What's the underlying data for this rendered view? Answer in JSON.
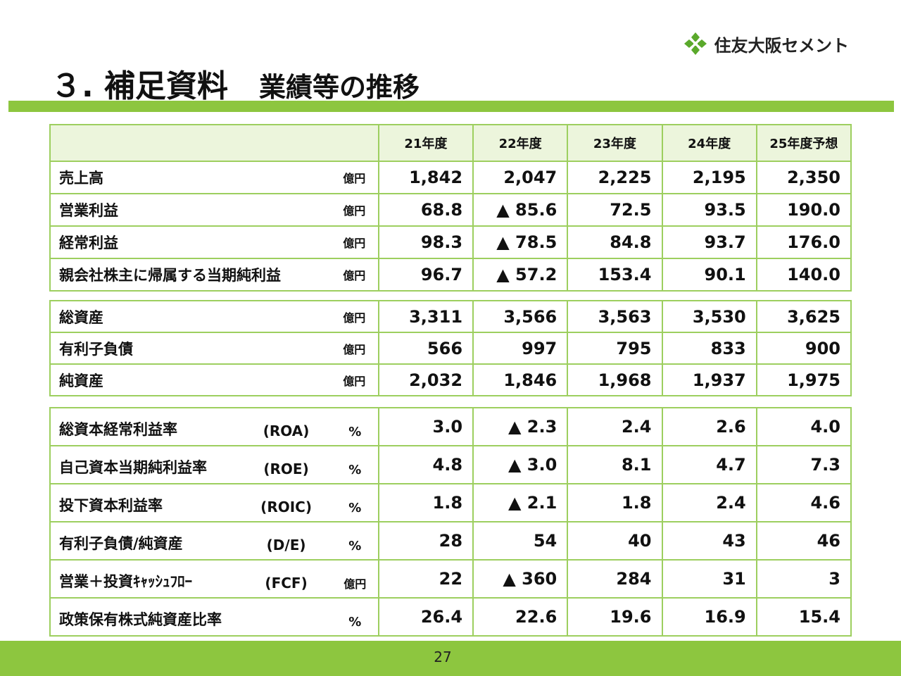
{
  "logo": {
    "text": "住友大阪セメント",
    "icon": "diamond-leaf-logo-icon",
    "color": "#5aa92b"
  },
  "title": {
    "main": "３. 補足資料",
    "sub": "業績等の推移"
  },
  "colors": {
    "accent_bar": "#8dc63f",
    "table_border": "#9dcf5f",
    "header_bg": "#ecf5dc"
  },
  "table": {
    "years": [
      "21年度",
      "22年度",
      "23年度",
      "24年度",
      "25年度予想"
    ],
    "group1": [
      {
        "label": "売上高",
        "unit": "億円",
        "values": [
          "1,842",
          "2,047",
          "2,225",
          "2,195",
          "2,350"
        ]
      },
      {
        "label": "営業利益",
        "unit": "億円",
        "values": [
          "68.8",
          "▲ 85.6",
          "72.5",
          "93.5",
          "190.0"
        ]
      },
      {
        "label": "経常利益",
        "unit": "億円",
        "values": [
          "98.3",
          "▲ 78.5",
          "84.8",
          "93.7",
          "176.0"
        ]
      },
      {
        "label": "親会社株主に帰属する当期純利益",
        "unit": "億円",
        "values": [
          "96.7",
          "▲ 57.2",
          "153.4",
          "90.1",
          "140.0"
        ]
      }
    ],
    "group2": [
      {
        "label": "総資産",
        "unit": "億円",
        "values": [
          "3,311",
          "3,566",
          "3,563",
          "3,530",
          "3,625"
        ]
      },
      {
        "label": "有利子負債",
        "unit": "億円",
        "values": [
          "566",
          "997",
          "795",
          "833",
          "900"
        ]
      },
      {
        "label": "純資産",
        "unit": "億円",
        "values": [
          "2,032",
          "1,846",
          "1,968",
          "1,937",
          "1,975"
        ]
      }
    ],
    "group3": [
      {
        "label": "総資本経常利益率",
        "abbr": "(ROA)",
        "unit": "%",
        "values": [
          "3.0",
          "▲ 2.3",
          "2.4",
          "2.6",
          "4.0"
        ]
      },
      {
        "label": "自己資本当期純利益率",
        "abbr": "(ROE)",
        "unit": "%",
        "values": [
          "4.8",
          "▲ 3.0",
          "8.1",
          "4.7",
          "7.3"
        ]
      },
      {
        "label": "投下資本利益率",
        "abbr": "(ROIC)",
        "unit": "%",
        "values": [
          "1.8",
          "▲ 2.1",
          "1.8",
          "2.4",
          "4.6"
        ]
      },
      {
        "label": "有利子負債/純資産",
        "abbr": "(D/E)",
        "unit": "%",
        "values": [
          "28",
          "54",
          "40",
          "43",
          "46"
        ]
      },
      {
        "label": "営業＋投資ｷｬｯｼｭﾌﾛｰ",
        "abbr": "(FCF)",
        "unit": "億円",
        "values": [
          "22",
          "▲ 360",
          "284",
          "31",
          "3"
        ]
      },
      {
        "label": "政策保有株式純資産比率",
        "abbr": "",
        "unit": "%",
        "values": [
          "26.4",
          "22.6",
          "19.6",
          "16.9",
          "15.4"
        ]
      }
    ]
  },
  "footer": {
    "page_number": "27"
  }
}
